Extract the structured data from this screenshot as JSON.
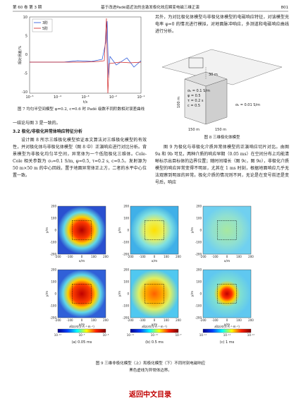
{
  "header": {
    "issue": "第 60 卷  第 3 期",
    "title": "基于改进Padé逼近法的含激发极化效应瞬变电磁三维正演",
    "page": "801"
  },
  "figure7": {
    "legend": [
      "3阶",
      "5阶"
    ],
    "y_label": "相对误差/%",
    "x_label": "t/s",
    "x_ticks": [
      "10⁻⁵",
      "10⁻⁴",
      "10⁻³",
      "10⁻²",
      "10⁻¹"
    ],
    "y_ticks": [
      "10",
      "5",
      "0",
      "-5",
      "-10"
    ],
    "caption": "图 7  均匀半空间模型 φ=0.2, c=0.6 时 Padé 级数不同阶数相对误差曲线"
  },
  "left_text": {
    "conclusion": "一结论与图 3 是一致的。",
    "section": "3.2  极化/非极化异常体响应特征分析",
    "paragraph": "设计图 8 所示三维极化模型验证本文算法对三维极化模型的有效性，并对极化体与非极化体模型（图 8 中）正演响应进行对比分析。背景模型为非极化均匀半空间，异常体为一个低阻极化三维体。Cole-Cole 相关参数为 σ₀=0.1 S/m, φ=0.5, τ=0.2 s, c=0.5。发射源为 50 m×50 m 的中心回线，置于地面异常体正上方，二者的水平中心位置一致。"
  },
  "right_text": {
    "intro": "另外，为对比极化体模型与非极化体模型的电磁响应特征，对该模型充电率 φ=0 的情况进行模拟，对地面脉冲响应，多测道和电磁响应曲线进行分析。",
    "paragraph": "图 9 为极化与非极化介质异常体模型的正演响应切片对比。由图 9a 和 9b 可见，两种介质的响应早期（0.05 ms）在空间分布上均能清晰标示出目标体的边界位置；随时间增长（图 9c，图 9e），非极化介质模型的响应异常变得不明显，尤其在 1 ms 时刻，根据地面响应几乎无法观察到明显的异常。极化介质的情况则不同，无论是在变号前还是变号后，响应"
  },
  "figure8": {
    "depth": "30 m",
    "height": "100 m",
    "params": [
      "σ₀ = 0.1 S/m",
      "φ = 0.5",
      "τ = 0.2 s",
      "c = 0.5"
    ],
    "background": "σ₀ = 0.01 S/m",
    "width": "150 m",
    "caption": "图 8  三维极化体模型"
  },
  "figure9": {
    "axis_ticks": [
      "-200",
      "-100",
      "0",
      "100",
      "200"
    ],
    "x_label": "x/m",
    "y_label": "y/m",
    "colorbar_title": "∂Bz/∂t/(V·A⁻¹·m⁻²)",
    "colorbar_ticks": [
      [
        "10⁻¹⁰",
        "10⁻⁹",
        "10⁻⁸"
      ],
      [
        "10⁻¹¹",
        "10⁻¹⁰",
        "10⁻⁹"
      ],
      [
        "10⁻¹²",
        "10⁻¹¹",
        "10⁻¹⁰"
      ]
    ],
    "subcaptions": [
      "(a) 0.05 ms",
      "(b) 0.5 ms",
      "(c) 1 ms"
    ],
    "caption": [
      "图 9  三维非极化模型（上）和极化模型（下）不同时刻电磁响应",
      "黑色虚线为异常体边界。"
    ]
  },
  "footer": "返回中文目录"
}
